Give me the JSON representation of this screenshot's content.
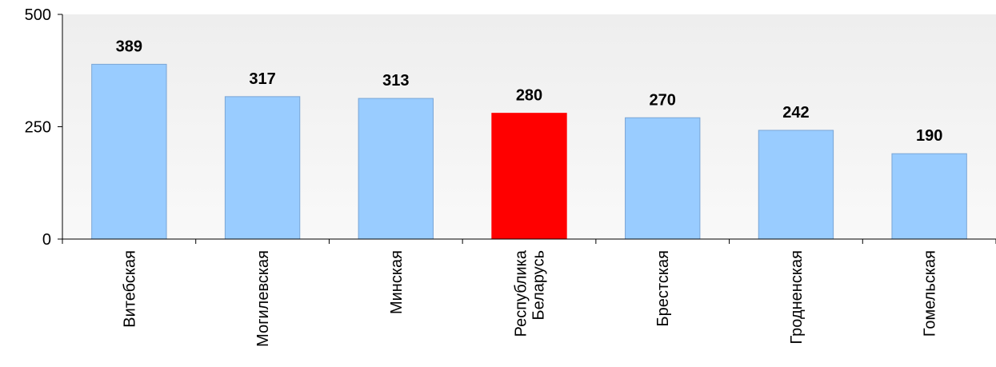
{
  "chart_data": {
    "type": "bar",
    "categories": [
      [
        "Витебская"
      ],
      [
        "Могилевская"
      ],
      [
        "Минская"
      ],
      [
        "Республика",
        "Беларусь"
      ],
      [
        "Брестская"
      ],
      [
        "Гродненская"
      ],
      [
        "Гомельская"
      ]
    ],
    "values": [
      389,
      317,
      313,
      280,
      270,
      242,
      190
    ],
    "value_labels": [
      "389",
      "317",
      "313",
      "280",
      "270",
      "242",
      "190"
    ],
    "highlight_index": 3,
    "ylim": [
      0,
      500
    ],
    "yticks": [
      0,
      250,
      500
    ],
    "ytick_labels": [
      "0",
      "250",
      "500"
    ],
    "colors": {
      "bar": "#99ccff",
      "bar_border": "#7aa6d6",
      "highlight": "#ff0000",
      "plot_bg_top": "#eeeeee",
      "plot_bg_bottom": "#f9f9f9",
      "axis": "#000000"
    },
    "grid": false,
    "legend": "none"
  }
}
